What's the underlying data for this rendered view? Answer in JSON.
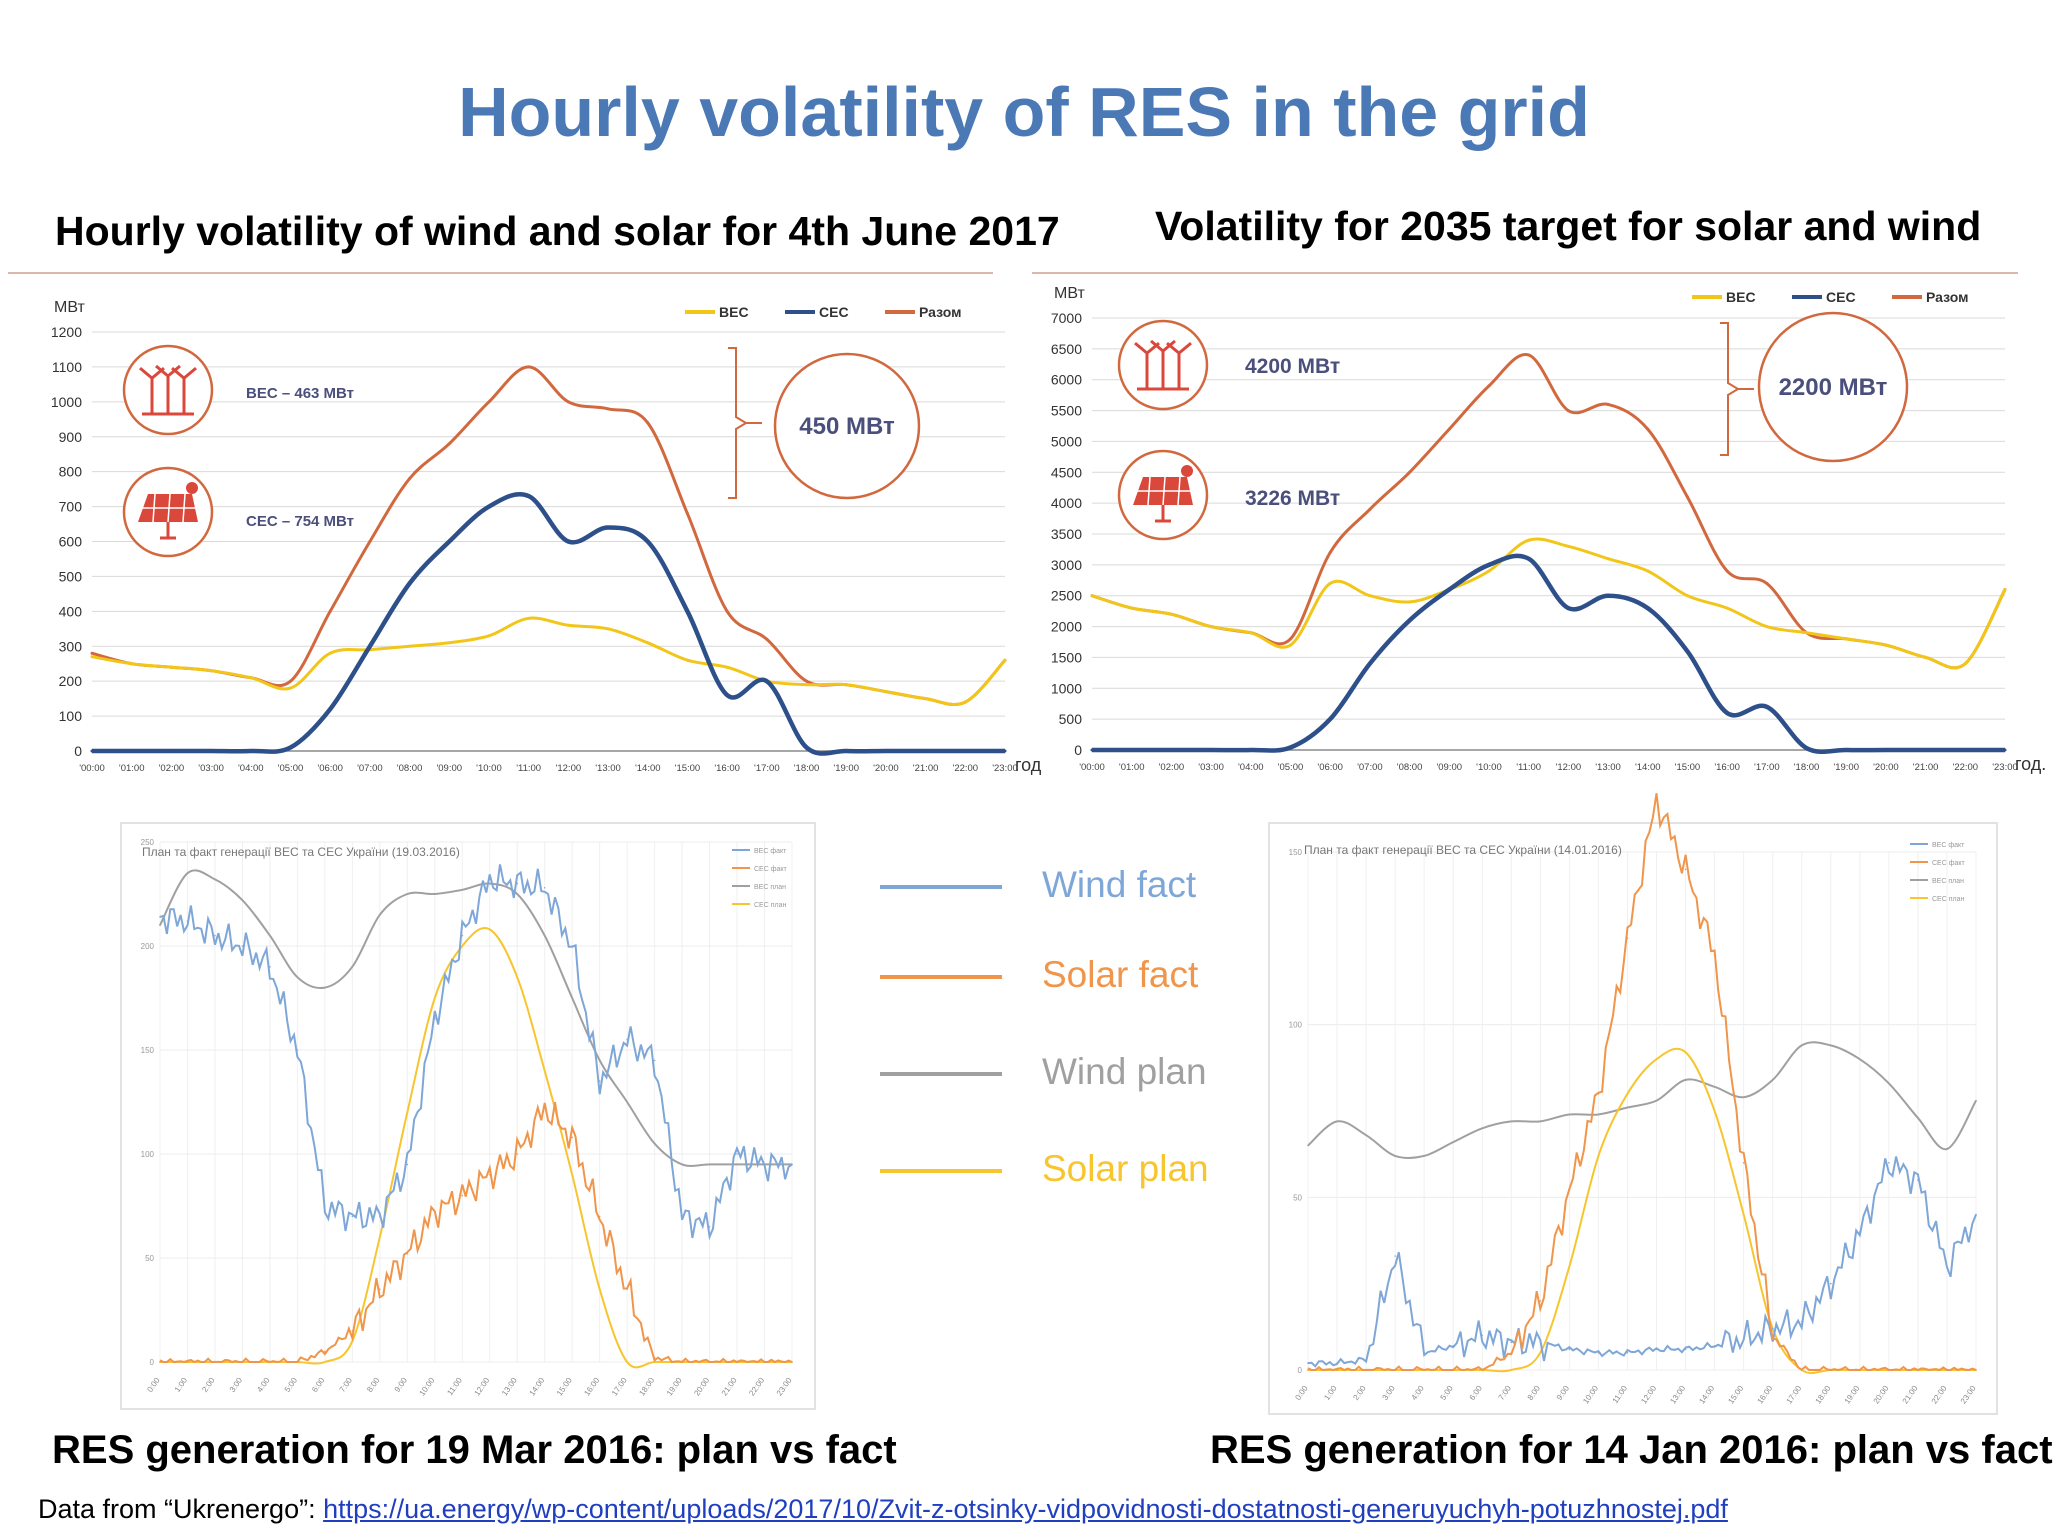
{
  "page": {
    "title": "Hourly volatility of RES in the grid",
    "subtitle_left": "Hourly volatility of wind and solar for 4th June 2017",
    "subtitle_right": "Volatility for 2035 target for solar and wind",
    "caption_left": "RES generation for 19 Mar 2016: plan vs fact",
    "caption_right": "RES generation for 14 Jan 2016: plan vs fact",
    "source_prefix": "Data from “Ukrenergo”: ",
    "source_link": "https://ua.energy/wp-content/uploads/2017/10/Zvit-z-otsinky-vidpovidnosti-dostatnosti-generuyuchyh-potuzhnostej.pdf"
  },
  "legend": {
    "items": [
      {
        "label": "Wind fact",
        "color": "#7ea7d8"
      },
      {
        "label": "Solar fact",
        "color": "#f0954a"
      },
      {
        "label": "Wind plan",
        "color": "#a0a0a0"
      },
      {
        "label": "Solar plan",
        "color": "#f7c52d"
      }
    ]
  },
  "chart_data": [
    {
      "type": "line",
      "title": "",
      "unit": "МВт",
      "xlabel": "год",
      "x": [
        "00:00",
        "01:00",
        "02:00",
        "03:00",
        "04:00",
        "05:00",
        "06:00",
        "07:00",
        "08:00",
        "09:00",
        "10:00",
        "11:00",
        "12:00",
        "13:00",
        "14:00",
        "15:00",
        "16:00",
        "17:00",
        "18:00",
        "19:00",
        "20:00",
        "21:00",
        "22:00",
        "23:00"
      ],
      "ylim": [
        0,
        1200
      ],
      "yticks": [
        0,
        100,
        200,
        300,
        400,
        500,
        600,
        700,
        800,
        900,
        1000,
        1100,
        1200
      ],
      "legend": [
        "ВЕС",
        "СЕС",
        "Разом"
      ],
      "colors": {
        "ВЕС": "#f2c619",
        "СЕС": "#2d4f8a",
        "Разом": "#d2683e"
      },
      "series": [
        {
          "name": "ВЕС",
          "values": [
            270,
            250,
            240,
            230,
            210,
            180,
            280,
            290,
            300,
            310,
            330,
            380,
            360,
            350,
            310,
            260,
            240,
            200,
            190,
            190,
            170,
            150,
            140,
            260
          ]
        },
        {
          "name": "СЕС",
          "values": [
            0,
            0,
            0,
            0,
            0,
            10,
            120,
            300,
            480,
            600,
            700,
            730,
            600,
            640,
            600,
            400,
            160,
            200,
            10,
            0,
            0,
            0,
            0,
            0
          ]
        },
        {
          "name": "Разом",
          "values": [
            280,
            250,
            240,
            230,
            210,
            200,
            400,
            600,
            780,
            880,
            1000,
            1100,
            1000,
            980,
            940,
            680,
            400,
            320,
            200,
            190,
            170,
            150,
            140,
            260
          ]
        }
      ],
      "annotations": {
        "wind_label": "ВЕС – 463 МВт",
        "solar_label": "СЕС – 754 МВт",
        "range_label": "450 МВт"
      }
    },
    {
      "type": "line",
      "title": "",
      "unit": "МВт",
      "xlabel": "год.",
      "x": [
        "00:00",
        "01:00",
        "02:00",
        "03:00",
        "04:00",
        "05:00",
        "06:00",
        "07:00",
        "08:00",
        "09:00",
        "10:00",
        "11:00",
        "12:00",
        "13:00",
        "14:00",
        "15:00",
        "16:00",
        "17:00",
        "18:00",
        "19:00",
        "20:00",
        "21:00",
        "22:00",
        "23:00"
      ],
      "ylim": [
        0,
        7000
      ],
      "yticks": [
        0,
        500,
        1000,
        1500,
        2000,
        2500,
        3000,
        3500,
        4000,
        4500,
        5000,
        5500,
        6000,
        6500,
        7000
      ],
      "legend": [
        "ВЕС",
        "СЕС",
        "Разом"
      ],
      "colors": {
        "ВЕС": "#f2c619",
        "СЕС": "#2d4f8a",
        "Разом": "#d2683e"
      },
      "series": [
        {
          "name": "ВЕС",
          "values": [
            2500,
            2300,
            2200,
            2000,
            1900,
            1700,
            2700,
            2500,
            2400,
            2600,
            2900,
            3400,
            3300,
            3100,
            2900,
            2500,
            2300,
            2000,
            1900,
            1800,
            1700,
            1500,
            1400,
            2600
          ]
        },
        {
          "name": "СЕС",
          "values": [
            0,
            0,
            0,
            0,
            0,
            40,
            500,
            1400,
            2100,
            2600,
            3000,
            3100,
            2300,
            2500,
            2300,
            1600,
            600,
            700,
            30,
            0,
            0,
            0,
            0,
            0
          ]
        },
        {
          "name": "Разом",
          "values": [
            2500,
            2300,
            2200,
            2000,
            1900,
            1800,
            3200,
            3900,
            4500,
            5200,
            5900,
            6400,
            5500,
            5600,
            5200,
            4100,
            2900,
            2700,
            1900,
            1800,
            1700,
            1500,
            1400,
            2600
          ]
        }
      ],
      "annotations": {
        "wind_label": "4200 МВт",
        "solar_label": "3226 МВт",
        "range_label": "2200 МВт"
      }
    },
    {
      "type": "line",
      "title": "План та факт генерації ВЕС та СЕС України (19.03.2016)",
      "x": [
        "0:00",
        "1:00",
        "2:00",
        "3:00",
        "4:00",
        "5:00",
        "6:00",
        "7:00",
        "8:00",
        "9:00",
        "10:00",
        "11:00",
        "12:00",
        "13:00",
        "14:00",
        "15:00",
        "16:00",
        "17:00",
        "18:00",
        "19:00",
        "20:00",
        "21:00",
        "22:00",
        "23:00"
      ],
      "ylim": [
        0,
        250
      ],
      "yticks": [
        0,
        50,
        100,
        150,
        200,
        250
      ],
      "legend": [
        "ВЕС факт",
        "СЕС факт",
        "ВЕС план",
        "СЕС план"
      ],
      "series": [
        {
          "name": "ВЕС факт",
          "values": [
            214,
            212,
            205,
            200,
            190,
            150,
            75,
            70,
            70,
            95,
            165,
            205,
            232,
            230,
            228,
            200,
            135,
            155,
            145,
            70,
            65,
            100,
            95,
            95
          ]
        },
        {
          "name": "СЕС факт",
          "values": [
            0,
            0,
            0,
            0,
            0,
            0,
            5,
            15,
            35,
            52,
            72,
            80,
            90,
            100,
            122,
            108,
            70,
            35,
            2,
            0,
            0,
            0,
            0,
            0
          ]
        },
        {
          "name": "ВЕС план",
          "values": [
            210,
            235,
            232,
            222,
            205,
            185,
            180,
            190,
            215,
            225,
            225,
            227,
            230,
            225,
            205,
            175,
            145,
            125,
            105,
            95,
            95,
            95,
            95,
            95
          ]
        },
        {
          "name": "СЕС план",
          "values": [
            0,
            0,
            0,
            0,
            0,
            0,
            0,
            10,
            60,
            120,
            175,
            200,
            208,
            185,
            140,
            90,
            35,
            0,
            0,
            0,
            0,
            0,
            0,
            0
          ]
        }
      ]
    },
    {
      "type": "line",
      "title": "План та факт генерації ВЕС та СЕС України (14.01.2016)",
      "x": [
        "0:00",
        "1:00",
        "2:00",
        "3:00",
        "4:00",
        "5:00",
        "6:00",
        "7:00",
        "8:00",
        "9:00",
        "10:00",
        "11:00",
        "12:00",
        "13:00",
        "14:00",
        "15:00",
        "16:00",
        "17:00",
        "18:00",
        "19:00",
        "20:00",
        "21:00",
        "22:00",
        "23:00"
      ],
      "ylim": [
        0,
        150
      ],
      "yticks": [
        0,
        50,
        100,
        150
      ],
      "legend": [
        "ВЕС факт",
        "СЕС факт",
        "ВЕС план",
        "СЕС план"
      ],
      "series": [
        {
          "name": "ВЕС факт",
          "values": [
            2,
            2,
            3,
            33,
            5,
            7,
            10,
            8,
            8,
            6,
            5,
            5,
            6,
            6,
            7,
            9,
            12,
            14,
            25,
            40,
            60,
            55,
            30,
            45
          ]
        },
        {
          "name": "СЕС факт",
          "values": [
            0,
            0,
            0,
            0,
            0,
            0,
            0,
            5,
            20,
            52,
            80,
            125,
            165,
            145,
            120,
            60,
            10,
            0,
            0,
            0,
            0,
            0,
            0,
            0
          ]
        },
        {
          "name": "ВЕС план",
          "values": [
            65,
            72,
            68,
            62,
            62,
            66,
            70,
            72,
            72,
            74,
            74,
            76,
            78,
            84,
            82,
            79,
            84,
            94,
            94,
            90,
            83,
            73,
            64,
            78
          ]
        },
        {
          "name": "СЕС план",
          "values": [
            0,
            0,
            0,
            0,
            0,
            0,
            0,
            0,
            5,
            30,
            62,
            80,
            90,
            92,
            75,
            45,
            12,
            0,
            0,
            0,
            0,
            0,
            0,
            0
          ]
        }
      ]
    }
  ]
}
